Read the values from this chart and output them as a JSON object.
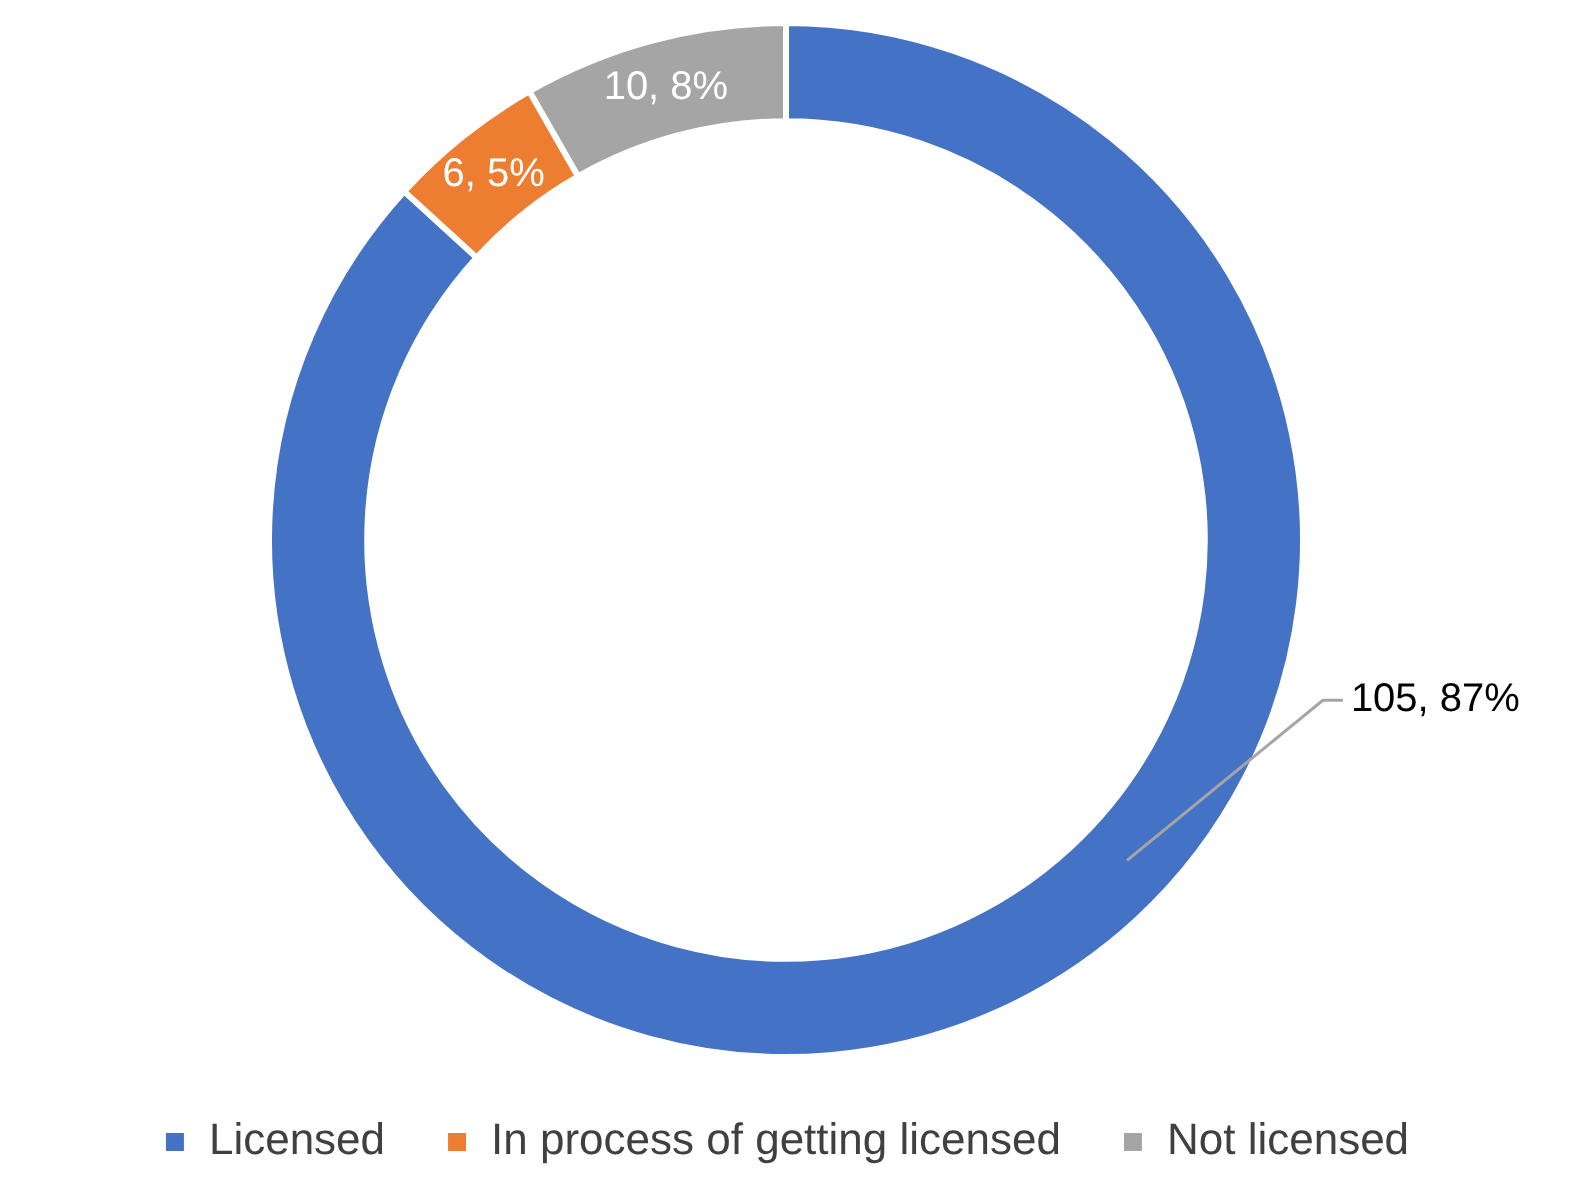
{
  "chart_data": {
    "type": "donut",
    "categories": [
      "Licensed",
      "In process of getting licensed",
      "Not licensed"
    ],
    "values": [
      105,
      6,
      10
    ],
    "colors": [
      "#4472c4",
      "#ed7d31",
      "#a5a5a5"
    ],
    "value_labels": [
      "105, 87%",
      "6, 5%",
      "10, 8%"
    ],
    "legend": "bottom"
  }
}
